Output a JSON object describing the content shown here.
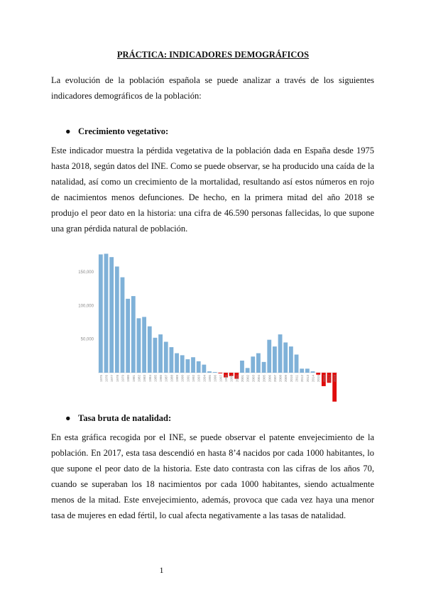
{
  "title": "PRÁCTICA: INDICADORES DEMOGRÁFICOS",
  "intro": "La evolución de la población española se puede analizar a través de los siguientes indicadores demográficos de la población:",
  "sections": [
    {
      "heading": "Crecimiento vegetativo:",
      "text": "Este indicador muestra la pérdida vegetativa de la población dada en España desde 1975 hasta 2018, según datos del INE. Como se puede observar, se ha producido una caída de la natalidad, así como un crecimiento de la mortalidad, resultando así estos números en rojo de nacimientos menos defunciones. De hecho, en la primera mitad del año 2018 se produjo el peor dato en la historia: una cifra de 46.590 personas fallecidas, lo que supone una gran pérdida natural de población."
    },
    {
      "heading": "Tasa bruta de natalidad:",
      "text": "En esta gráfica recogida por el INE, se puede observar el patente envejecimiento de la población. En 2017, esta tasa descendió en hasta 8’4 nacidos por cada 1000 habitantes, lo que supone el peor dato de la historia. Este dato contrasta con las cifras de los años 70, cuando se superaban los 18 nacimientos por cada 1000 habitantes, siendo actualmente menos de la mitad. Este envejecimiento, además, provoca que cada vez haya una menor tasa de mujeres en edad fértil, lo cual afecta negativamente a las tasas de natalidad."
    }
  ],
  "page_number": "1",
  "chart_data": {
    "type": "bar",
    "categories": [
      "1975",
      "1976",
      "1977",
      "1978",
      "1979",
      "1980",
      "1981",
      "1982",
      "1983",
      "1984",
      "1985",
      "1986",
      "1987",
      "1988",
      "1989",
      "1990",
      "1991",
      "1992",
      "1993",
      "1994",
      "1995",
      "1996",
      "1997",
      "1998",
      "1999",
      "2000",
      "2001",
      "2002",
      "2003",
      "2004",
      "2005",
      "2006",
      "2007",
      "2008",
      "2009",
      "2010",
      "2011",
      "2012",
      "2013",
      "2014",
      "2015",
      "2016",
      "2017",
      "2018"
    ],
    "values": [
      176000,
      177000,
      172000,
      158000,
      142000,
      110000,
      114000,
      81000,
      83000,
      69000,
      52000,
      57000,
      46000,
      38000,
      29000,
      26000,
      20000,
      23000,
      17000,
      12000,
      2000,
      1000,
      -1000,
      -7000,
      -5000,
      -9000,
      18000,
      7000,
      24000,
      29000,
      16000,
      49000,
      39000,
      57000,
      45000,
      39000,
      27000,
      6000,
      6000,
      2000,
      -3000,
      -20000,
      -15000,
      -43000
    ],
    "color": "#7fb1d8",
    "negative_color": "#e00b0b",
    "ylim": [
      -45000,
      180000
    ],
    "yticks": [
      {
        "value": 50000,
        "label": "50,000"
      },
      {
        "value": 100000,
        "label": "100,000"
      },
      {
        "value": 150000,
        "label": "150,000"
      }
    ],
    "grid": false
  }
}
